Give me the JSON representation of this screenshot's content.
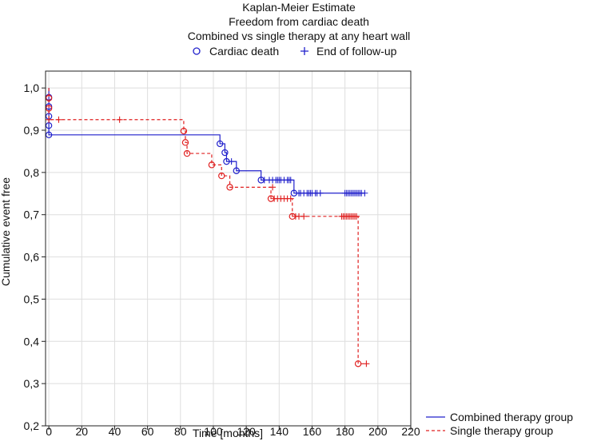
{
  "chart_data": {
    "type": "line",
    "subtype": "kaplan-meier",
    "title": [
      "Kaplan-Meier Estimate",
      "Freedom from cardiac death",
      "Combined vs single therapy at any heart wall"
    ],
    "xlabel": "Time [months]",
    "ylabel": "Cumulative event free",
    "xlim": [
      -2,
      220
    ],
    "ylim": [
      0.2,
      1.04
    ],
    "x_ticks": [
      0,
      20,
      40,
      60,
      80,
      100,
      120,
      140,
      160,
      180,
      200,
      220
    ],
    "y_ticks": [
      0.2,
      0.3,
      0.4,
      0.5,
      0.6,
      0.7,
      0.8,
      0.9,
      1.0
    ],
    "y_tick_labels": [
      "0,2",
      "0,3",
      "0,4",
      "0,5",
      "0,6",
      "0,7",
      "0,8",
      "0,9",
      "1,0"
    ],
    "x_tick_labels": [
      "0",
      "20",
      "40",
      "60",
      "80",
      "100",
      "120",
      "140",
      "160",
      "180",
      "200",
      "220"
    ],
    "grid": true,
    "marker_legend": {
      "placement": "top",
      "items": [
        {
          "label": "Cardiac death",
          "marker": "circle"
        },
        {
          "label": "End of follow-up",
          "marker": "plus"
        }
      ]
    },
    "series_legend": {
      "placement": "bottom-right"
    },
    "series": [
      {
        "name": "Combined therapy group",
        "color": "#2020cc",
        "dash": "solid",
        "steps": [
          [
            0,
            1.0
          ],
          [
            0,
            0.978
          ],
          [
            0,
            0.956
          ],
          [
            0,
            0.933
          ],
          [
            0,
            0.911
          ],
          [
            0,
            0.889
          ],
          [
            104,
            0.868
          ],
          [
            107,
            0.847
          ],
          [
            108,
            0.826
          ],
          [
            114,
            0.804
          ],
          [
            129,
            0.782
          ],
          [
            149,
            0.751
          ],
          [
            192,
            0.751
          ]
        ],
        "events": [
          [
            0,
            0.978
          ],
          [
            0,
            0.956
          ],
          [
            0,
            0.933
          ],
          [
            0,
            0.911
          ],
          [
            0,
            0.889
          ],
          [
            104,
            0.868
          ],
          [
            107,
            0.847
          ],
          [
            108,
            0.826
          ],
          [
            114,
            0.804
          ],
          [
            129,
            0.782
          ],
          [
            149,
            0.751
          ]
        ],
        "censored": [
          [
            111,
            0.826
          ],
          [
            131,
            0.782
          ],
          [
            134,
            0.782
          ],
          [
            136,
            0.782
          ],
          [
            138,
            0.782
          ],
          [
            139,
            0.782
          ],
          [
            140,
            0.782
          ],
          [
            141,
            0.782
          ],
          [
            143,
            0.782
          ],
          [
            145,
            0.782
          ],
          [
            146,
            0.782
          ],
          [
            147,
            0.782
          ],
          [
            152,
            0.751
          ],
          [
            153,
            0.751
          ],
          [
            155,
            0.751
          ],
          [
            157,
            0.751
          ],
          [
            158,
            0.751
          ],
          [
            159,
            0.751
          ],
          [
            160,
            0.751
          ],
          [
            162,
            0.751
          ],
          [
            163,
            0.751
          ],
          [
            165,
            0.751
          ],
          [
            180,
            0.751
          ],
          [
            181,
            0.751
          ],
          [
            182,
            0.751
          ],
          [
            183,
            0.751
          ],
          [
            184,
            0.751
          ],
          [
            185,
            0.751
          ],
          [
            186,
            0.751
          ],
          [
            187,
            0.751
          ],
          [
            188,
            0.751
          ],
          [
            189,
            0.751
          ],
          [
            190,
            0.751
          ],
          [
            192,
            0.751
          ]
        ]
      },
      {
        "name": "Single therapy group",
        "color": "#e02020",
        "dash": "dashed",
        "steps": [
          [
            0,
            1.0
          ],
          [
            0,
            0.976
          ],
          [
            0,
            0.952
          ],
          [
            0,
            0.925
          ],
          [
            82,
            0.898
          ],
          [
            83,
            0.871
          ],
          [
            84,
            0.845
          ],
          [
            99,
            0.818
          ],
          [
            105,
            0.792
          ],
          [
            110,
            0.765
          ],
          [
            135,
            0.738
          ],
          [
            148,
            0.696
          ],
          [
            188,
            0.347
          ],
          [
            193,
            0.347
          ]
        ],
        "events": [
          [
            0,
            0.976
          ],
          [
            0,
            0.952
          ],
          [
            82,
            0.898
          ],
          [
            83,
            0.871
          ],
          [
            84,
            0.845
          ],
          [
            99,
            0.818
          ],
          [
            105,
            0.792
          ],
          [
            110,
            0.765
          ],
          [
            135,
            0.738
          ],
          [
            148,
            0.696
          ],
          [
            188,
            0.347
          ]
        ],
        "censored": [
          [
            0,
            0.925
          ],
          [
            6,
            0.925
          ],
          [
            43,
            0.925
          ],
          [
            136,
            0.765
          ],
          [
            137,
            0.738
          ],
          [
            139,
            0.738
          ],
          [
            141,
            0.738
          ],
          [
            143,
            0.738
          ],
          [
            145,
            0.738
          ],
          [
            147,
            0.738
          ],
          [
            150,
            0.696
          ],
          [
            152,
            0.696
          ],
          [
            155,
            0.696
          ],
          [
            178,
            0.696
          ],
          [
            179,
            0.696
          ],
          [
            180,
            0.696
          ],
          [
            181,
            0.696
          ],
          [
            182,
            0.696
          ],
          [
            183,
            0.696
          ],
          [
            184,
            0.696
          ],
          [
            185,
            0.696
          ],
          [
            186,
            0.696
          ],
          [
            187,
            0.696
          ],
          [
            193,
            0.347
          ]
        ]
      }
    ]
  }
}
